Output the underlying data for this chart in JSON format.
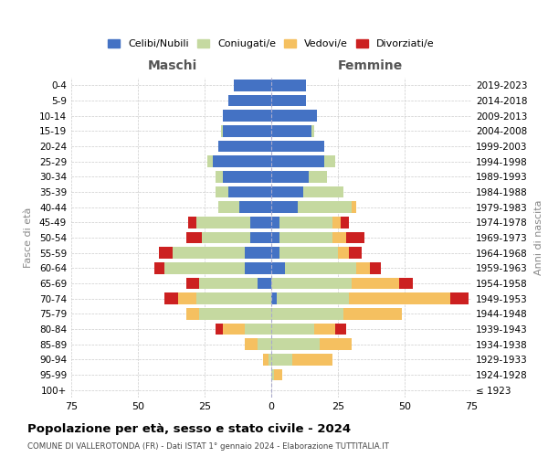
{
  "age_groups": [
    "0-4",
    "5-9",
    "10-14",
    "15-19",
    "20-24",
    "25-29",
    "30-34",
    "35-39",
    "40-44",
    "45-49",
    "50-54",
    "55-59",
    "60-64",
    "65-69",
    "70-74",
    "75-79",
    "80-84",
    "85-89",
    "90-94",
    "95-99",
    "100+"
  ],
  "birth_years": [
    "2019-2023",
    "2014-2018",
    "2009-2013",
    "2004-2008",
    "1999-2003",
    "1994-1998",
    "1989-1993",
    "1984-1988",
    "1979-1983",
    "1974-1978",
    "1969-1973",
    "1964-1968",
    "1959-1963",
    "1954-1958",
    "1949-1953",
    "1944-1948",
    "1939-1943",
    "1934-1938",
    "1929-1933",
    "1924-1928",
    "≤ 1923"
  ],
  "male": {
    "celibi": [
      14,
      16,
      18,
      18,
      20,
      22,
      18,
      16,
      12,
      8,
      8,
      10,
      10,
      5,
      0,
      0,
      0,
      0,
      0,
      0,
      0
    ],
    "coniugati": [
      0,
      0,
      0,
      1,
      0,
      2,
      3,
      5,
      8,
      20,
      18,
      27,
      30,
      22,
      28,
      27,
      10,
      5,
      1,
      0,
      0
    ],
    "vedovi": [
      0,
      0,
      0,
      0,
      0,
      0,
      0,
      0,
      0,
      0,
      0,
      0,
      0,
      0,
      7,
      5,
      8,
      5,
      2,
      0,
      0
    ],
    "divorziati": [
      0,
      0,
      0,
      0,
      0,
      0,
      0,
      0,
      0,
      3,
      6,
      5,
      4,
      5,
      5,
      0,
      3,
      0,
      0,
      0,
      0
    ]
  },
  "female": {
    "nubili": [
      13,
      13,
      17,
      15,
      20,
      20,
      14,
      12,
      10,
      3,
      3,
      3,
      5,
      0,
      2,
      0,
      0,
      0,
      0,
      0,
      0
    ],
    "coniugate": [
      0,
      0,
      0,
      1,
      0,
      4,
      7,
      15,
      20,
      20,
      20,
      22,
      27,
      30,
      27,
      27,
      16,
      18,
      8,
      1,
      0
    ],
    "vedove": [
      0,
      0,
      0,
      0,
      0,
      0,
      0,
      0,
      2,
      3,
      5,
      4,
      5,
      18,
      38,
      22,
      8,
      12,
      15,
      3,
      0
    ],
    "divorziate": [
      0,
      0,
      0,
      0,
      0,
      0,
      0,
      0,
      0,
      3,
      7,
      5,
      4,
      5,
      7,
      0,
      4,
      0,
      0,
      0,
      0
    ]
  },
  "colors": {
    "celibi": "#4472C4",
    "coniugati": "#c5d9a0",
    "vedovi": "#f5c060",
    "divorziati": "#cc2020"
  },
  "xlim": 75,
  "title": "Popolazione per età, sesso e stato civile - 2024",
  "subtitle": "COMUNE DI VALLEROTONDA (FR) - Dati ISTAT 1° gennaio 2024 - Elaborazione TUTTITALIA.IT",
  "ylabel_left": "Fasce di età",
  "ylabel_right": "Anni di nascita",
  "xlabel_maschi": "Maschi",
  "xlabel_femmine": "Femmine"
}
